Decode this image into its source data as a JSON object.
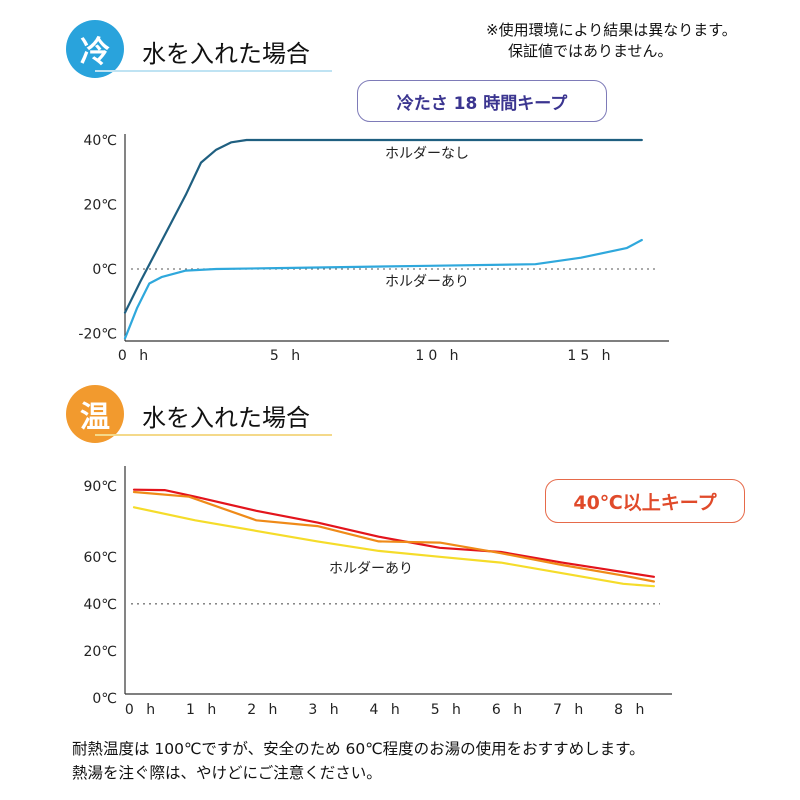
{
  "note": {
    "line1": "※使用環境により結果は異なります。",
    "line2": "保証値ではありません。"
  },
  "cold_section": {
    "badge": "冷",
    "title": "水を入れた場合",
    "pill": "冷たさ 18 時間キープ",
    "badge_color": "#29a3dc"
  },
  "hot_section": {
    "badge": "温",
    "title": "水を入れた場合",
    "pill": "40℃以上キープ",
    "badge_color": "#f29a2e"
  },
  "chart_data": [
    {
      "type": "line",
      "title": "",
      "xlabel": "",
      "ylabel": "",
      "x_ticks": [
        0,
        5,
        10,
        15
      ],
      "x_tick_labels": [
        "0 h",
        "5 h",
        "10 h",
        "15 h"
      ],
      "y_ticks": [
        40,
        20,
        0,
        -20
      ],
      "y_tick_labels": [
        "40℃",
        "20℃",
        "0℃",
        "-20℃"
      ],
      "xlim": [
        0,
        17.5
      ],
      "ylim": [
        -22,
        40
      ],
      "reference_line": 0,
      "series": [
        {
          "name": "ホルダーなし",
          "color": "#1f5f80",
          "x": [
            0,
            0.5,
            1.0,
            1.5,
            2.0,
            2.5,
            3.0,
            3.5,
            4.0,
            17.0
          ],
          "y": [
            -13.5,
            -4,
            5,
            14,
            23,
            33,
            37,
            39.3,
            40,
            40
          ]
        },
        {
          "name": "ホルダーあり",
          "color": "#2fa8dc",
          "x": [
            0,
            0.4,
            0.8,
            1.2,
            2.0,
            3.0,
            5.0,
            10.0,
            13.5,
            15.0,
            16.5,
            17.0
          ],
          "y": [
            -21.5,
            -12,
            -4.5,
            -2.5,
            -0.5,
            0,
            0.3,
            1,
            1.5,
            3.5,
            6.5,
            9
          ]
        }
      ]
    },
    {
      "type": "line",
      "title": "",
      "xlabel": "",
      "ylabel": "",
      "x_ticks": [
        0,
        1,
        2,
        3,
        4,
        5,
        6,
        7,
        8
      ],
      "x_tick_labels": [
        "0 h",
        "1 h",
        "2 h",
        "3 h",
        "4 h",
        "5 h",
        "6 h",
        "7 h",
        "8 h"
      ],
      "y_ticks": [
        90,
        60,
        40,
        20,
        0
      ],
      "y_tick_labels": [
        "90℃",
        "60℃",
        "40℃",
        "20℃",
        "0℃"
      ],
      "xlim": [
        0,
        8.6
      ],
      "ylim": [
        0,
        96
      ],
      "reference_line": 40,
      "annotation": "ホルダーあり",
      "series": [
        {
          "color": "#e3141c",
          "x": [
            0,
            0.5,
            1,
            2,
            3,
            4,
            5,
            6,
            7,
            8,
            8.5
          ],
          "y": [
            88.5,
            88.3,
            85.5,
            79.5,
            74.5,
            68.5,
            63.8,
            62,
            57.5,
            53.5,
            51.5
          ]
        },
        {
          "color": "#ef8a18",
          "x": [
            0,
            0.9,
            2,
            3,
            4,
            5,
            6,
            7,
            8,
            8.5
          ],
          "y": [
            87.5,
            85.5,
            75.5,
            73,
            66.5,
            66,
            61.5,
            56.5,
            52,
            49.5
          ]
        },
        {
          "color": "#f5dc2a",
          "x": [
            0,
            1,
            2,
            3,
            4,
            5,
            6,
            7,
            8,
            8.5
          ],
          "y": [
            81,
            75.5,
            71,
            66.5,
            62.5,
            60,
            57.5,
            53,
            48.5,
            47.5
          ]
        }
      ]
    }
  ],
  "footer": {
    "line1": "耐熱温度は 100℃ですが、安全のため 60℃程度のお湯の使用をおすすめします。",
    "line2": "熱湯を注ぐ際は、やけどにご注意ください。"
  }
}
